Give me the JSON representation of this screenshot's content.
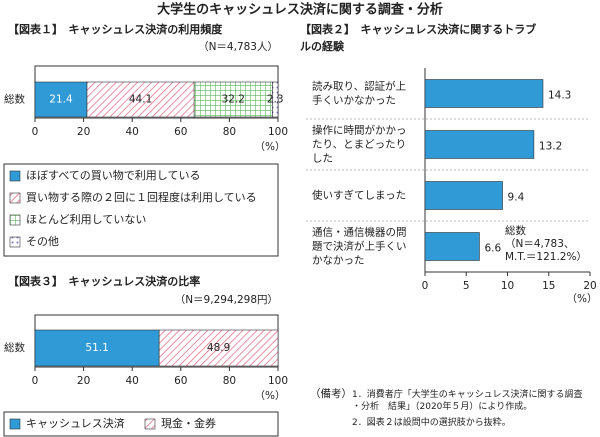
{
  "title": "大学生のキャッシュレス決済に関する調査・分析",
  "chart_data": [
    {
      "type": "stacked-bar",
      "title": "【図表１】　キャッシュレス決済の利用頻度",
      "subtitle": "（N＝4,783人）",
      "categories": [
        "総数"
      ],
      "series": [
        {
          "name": "ほぼすべての買い物で利用している",
          "color": "#2f9ad6",
          "pattern": "solid",
          "values": [
            21.4
          ]
        },
        {
          "name": "買い物する際の２回に１回程度は利用している",
          "color": "#e0607a",
          "pattern": "hatch",
          "values": [
            44.1
          ]
        },
        {
          "name": "ほとんど利用していない",
          "color": "#5cb85c",
          "pattern": "grid",
          "values": [
            32.2
          ]
        },
        {
          "name": "その他",
          "color": "#7a6fc0",
          "pattern": "dots",
          "values": [
            2.3
          ]
        }
      ],
      "xlim": [
        0,
        100
      ],
      "xticks": [
        0,
        20,
        40,
        60,
        80,
        100
      ],
      "x_unit": "（%）"
    },
    {
      "type": "bar",
      "title": "【図表２】　キャッシュレス決済に関するトラブルの経験",
      "categories": [
        "読み取り、認証が上手くいかなかった",
        "操作に時間がかかったり、とまどったりした",
        "使いすぎてしまった",
        "通信・通信機器の問題で決済が上手くいかなかった"
      ],
      "values": [
        14.3,
        13.2,
        9.4,
        6.6
      ],
      "color": "#2f9ad6",
      "xlim": [
        0,
        20
      ],
      "xticks": [
        0,
        5,
        10,
        15,
        20
      ],
      "x_unit": "（%）",
      "annotation": [
        "総数",
        "（N＝4,783、",
        "M.T.＝121.2%）"
      ]
    },
    {
      "type": "stacked-bar",
      "title": "【図表３】　キャッシュレス決済の比率",
      "subtitle": "（N＝9,294,298円）",
      "categories": [
        "総数"
      ],
      "series": [
        {
          "name": "キャッシュレス決済",
          "color": "#2f9ad6",
          "pattern": "solid",
          "values": [
            51.1
          ]
        },
        {
          "name": "現金・金券",
          "color": "#e0607a",
          "pattern": "hatch",
          "values": [
            48.9
          ]
        }
      ],
      "xlim": [
        0,
        100
      ],
      "xticks": [
        0,
        20,
        40,
        60,
        80,
        100
      ],
      "x_unit": "（%）"
    }
  ],
  "notes": {
    "label": "（備考）",
    "items": [
      "1．消費者庁「大学生のキャッシュレス決済に関する調査・分析　結果」（2020年５月）により作成。",
      "2．図表２は設問中の選択肢から抜粋。"
    ]
  }
}
